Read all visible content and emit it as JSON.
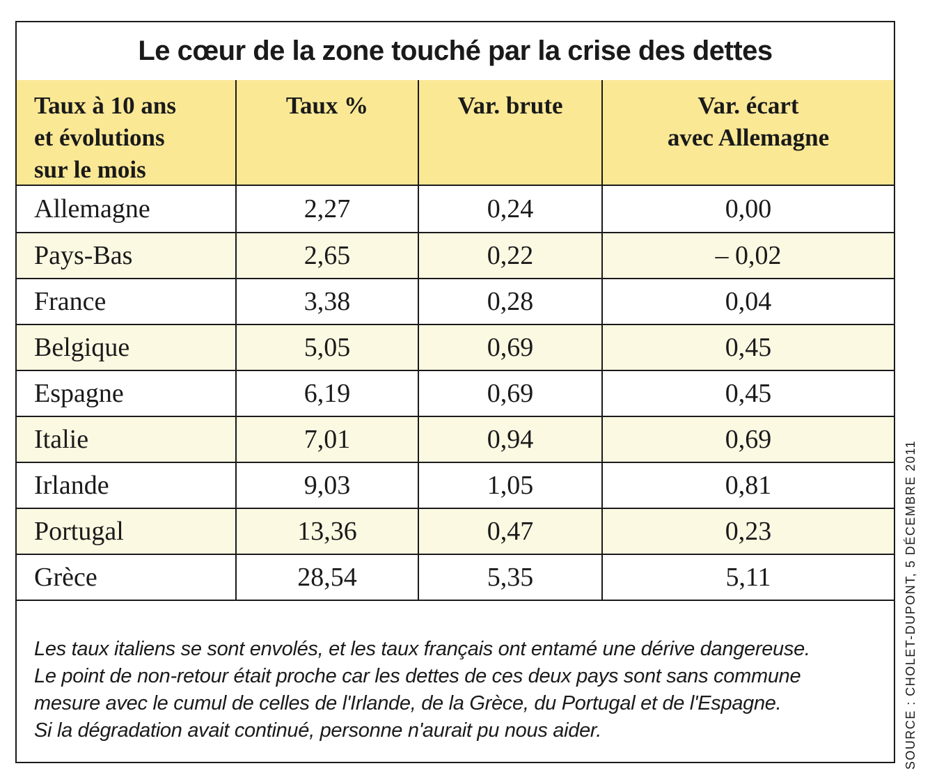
{
  "title": "Le cœur de la zone touché par la crise des dettes",
  "table": {
    "header": {
      "col1_line1": "Taux à 10 ans",
      "col1_line2": "et évolutions",
      "col1_line3": "sur le mois",
      "col2": "Taux %",
      "col3": "Var. brute",
      "col4_line1": "Var. écart",
      "col4_line2": "avec Allemagne"
    },
    "rows": [
      {
        "country": "Allemagne",
        "taux": "2,27",
        "var_brute": "0,24",
        "var_ecart": "0,00"
      },
      {
        "country": "Pays-Bas",
        "taux": "2,65",
        "var_brute": "0,22",
        "var_ecart": "– 0,02"
      },
      {
        "country": "France",
        "taux": "3,38",
        "var_brute": "0,28",
        "var_ecart": "0,04"
      },
      {
        "country": "Belgique",
        "taux": "5,05",
        "var_brute": "0,69",
        "var_ecart": "0,45"
      },
      {
        "country": "Espagne",
        "taux": "6,19",
        "var_brute": "0,69",
        "var_ecart": "0,45"
      },
      {
        "country": "Italie",
        "taux": "7,01",
        "var_brute": "0,94",
        "var_ecart": "0,69"
      },
      {
        "country": "Irlande",
        "taux": "9,03",
        "var_brute": "1,05",
        "var_ecart": "0,81"
      },
      {
        "country": "Portugal",
        "taux": "13,36",
        "var_brute": "0,47",
        "var_ecart": "0,23"
      },
      {
        "country": "Grèce",
        "taux": "28,54",
        "var_brute": "5,35",
        "var_ecart": "5,11"
      }
    ]
  },
  "note_lines": [
    "Les taux italiens se sont envolés, et les taux français ont entamé une dérive dangereuse.",
    "Le point de non-retour était proche car les dettes de ces deux pays sont sans commune",
    "mesure avec le cumul de celles de l'Irlande, de la Grèce, du Portugal et de l'Espagne.",
    "Si la dégradation avait continué, personne n'aurait pu nous aider."
  ],
  "source": "SOURCE : CHOLET-DUPONT, 5 DÉCEMBRE 2011",
  "colors": {
    "header_yellow": "#FAE895",
    "row_yellow": "#FCF9E2",
    "ink": "#1a1a1a",
    "background": "#ffffff"
  },
  "chart_data": {
    "type": "table",
    "title": "Le cœur de la zone touché par la crise des dettes",
    "columns": [
      "Taux à 10 ans et évolutions sur le mois",
      "Taux %",
      "Var. brute",
      "Var. écart avec Allemagne"
    ],
    "rows": [
      [
        "Allemagne",
        2.27,
        0.24,
        0.0
      ],
      [
        "Pays-Bas",
        2.65,
        0.22,
        -0.02
      ],
      [
        "France",
        3.38,
        0.28,
        0.04
      ],
      [
        "Belgique",
        5.05,
        0.69,
        0.45
      ],
      [
        "Espagne",
        6.19,
        0.69,
        0.45
      ],
      [
        "Italie",
        7.01,
        0.94,
        0.69
      ],
      [
        "Irlande",
        9.03,
        1.05,
        0.81
      ],
      [
        "Portugal",
        13.36,
        0.47,
        0.23
      ],
      [
        "Grèce",
        28.54,
        5.35,
        5.11
      ]
    ],
    "note": "Les taux italiens se sont envolés, et les taux français ont entamé une dérive dangereuse. Le point de non-retour était proche car les dettes de ces deux pays sont sans commune mesure avec le cumul de celles de l'Irlande, de la Grèce, du Portugal et de l'Espagne. Si la dégradation avait continué, personne n'aurait pu nous aider.",
    "source": "SOURCE : CHOLET-DUPONT, 5 DÉCEMBRE 2011"
  }
}
